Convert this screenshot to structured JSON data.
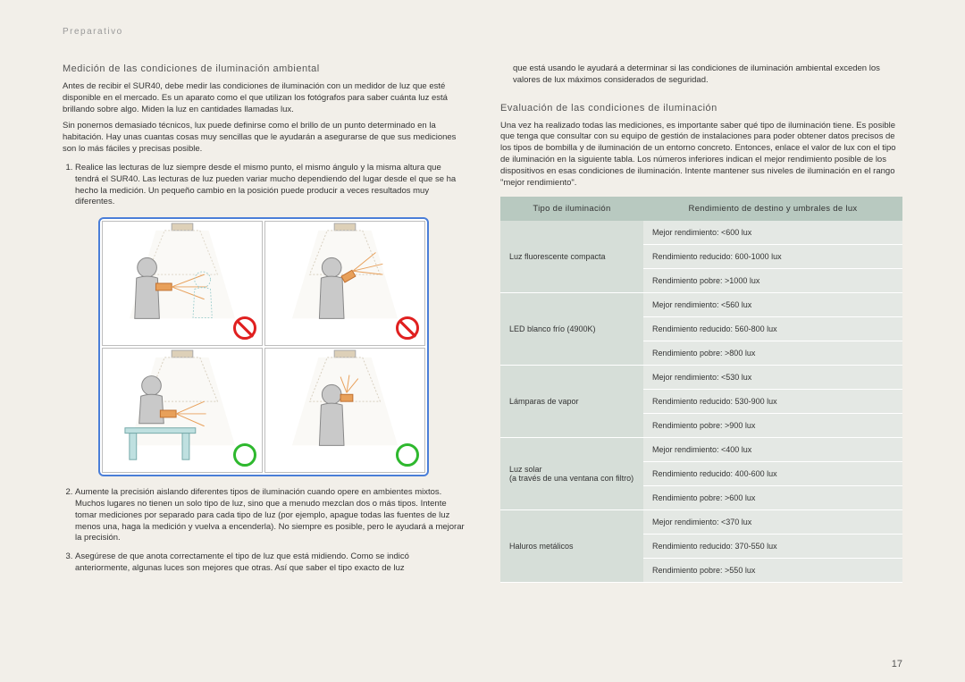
{
  "breadcrumb": "Preparativo",
  "pageNumber": "17",
  "left": {
    "h1": "Medición de las condiciones de iluminación ambiental",
    "p1": "Antes de recibir el SUR40, debe medir las condiciones de iluminación con un medidor de luz que esté disponible en el mercado. Es un aparato como el que utilizan los fotógrafos para saber cuánta luz está brillando sobre algo. Miden la luz en cantidades llamadas lux.",
    "p2": "Sin ponernos demasiado técnicos, lux puede definirse como el brillo de un punto determinado en la habitación. Hay unas cuantas cosas muy sencillas que le ayudarán a asegurarse de que sus mediciones son lo más fáciles y precisas posible.",
    "li1": "Realice las lecturas de luz siempre desde el mismo punto, el mismo ángulo y la misma altura que tendrá el SUR40. Las lecturas de luz pueden variar mucho dependiendo del lugar desde el que se ha hecho la medición. Un pequeño cambio en la posición puede producir a veces resultados muy diferentes.",
    "li2": "Aumente la precisión aislando diferentes tipos de iluminación cuando opere en ambientes mixtos. Muchos lugares no tienen un solo tipo de luz, sino que a menudo mezclan dos o más tipos. Intente tomar mediciones por separado para cada tipo de luz (por ejemplo, apague todas las fuentes de luz menos una, haga la medición y vuelva a encenderla). No siempre es posible, pero le ayudará a mejorar la precisión.",
    "li3": "Asegúrese de que anota correctamente el tipo de luz que está midiendo. Como se indicó anteriormente, algunas luces son mejores que otras. Así que saber el tipo exacto de luz"
  },
  "right": {
    "cont": "que está usando le ayudará a determinar si las condiciones de iluminación ambiental exceden los valores de lux máximos considerados de seguridad.",
    "h2": "Evaluación de las condiciones de iluminación",
    "p3": "Una vez ha realizado todas las mediciones, es importante saber qué tipo de iluminación tiene. Es posible que tenga que consultar con su equipo de gestión de instalaciones para poder obtener datos precisos de los tipos de bombilla y de iluminación de un entorno concreto. Entonces, enlace el valor de lux con el tipo de iluminación en la siguiente tabla. Los números inferiores indican el mejor rendimiento posible de los dispositivos en esas condiciones de iluminación. Intente mantener sus niveles de iluminación en el rango \"mejor rendimiento\"."
  },
  "table": {
    "head1": "Tipo de iluminación",
    "head2": "Rendimiento de destino y umbrales de lux",
    "rows": [
      {
        "type": "Luz fluorescente compacta",
        "best": "Mejor rendimiento: <600 lux",
        "reduced": "Rendimiento reducido: 600-1000 lux",
        "poor": "Rendimiento pobre: >1000 lux"
      },
      {
        "type": "LED blanco frío (4900K)",
        "best": "Mejor rendimiento: <560 lux",
        "reduced": "Rendimiento reducido: 560-800 lux",
        "poor": "Rendimiento pobre: >800 lux"
      },
      {
        "type": "Lámparas de vapor",
        "best": "Mejor rendimiento: <530 lux",
        "reduced": "Rendimiento reducido: 530-900 lux",
        "poor": "Rendimiento pobre: >900 lux"
      },
      {
        "type": "Luz solar\n(a través de una ventana con filtro)",
        "best": "Mejor rendimiento: <400 lux",
        "reduced": "Rendimiento reducido: 400-600 lux",
        "poor": "Rendimiento pobre: >600 lux"
      },
      {
        "type": "Haluros metálicos",
        "best": "Mejor rendimiento: <370 lux",
        "reduced": "Rendimiento reducido: 370-550 lux",
        "poor": "Rendimiento pobre: >550 lux"
      }
    ]
  },
  "diagram": {
    "indicators": [
      "no",
      "no",
      "yes",
      "yes"
    ],
    "colors": {
      "border": "#4a7ed8",
      "no": "#e02020",
      "yes": "#2eb82e",
      "person": "#c9c9c9",
      "personStroke": "#888",
      "light": "#d8d0c0",
      "beam": "#e8e4da",
      "device": "#e8a05a",
      "ray": "#e8a05a"
    }
  }
}
